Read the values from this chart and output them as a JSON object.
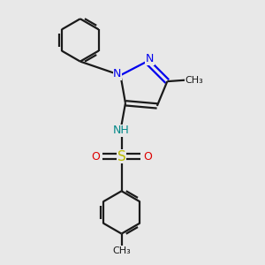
{
  "bg_color": "#e8e8e8",
  "bond_color": "#1a1a1a",
  "N_color": "#0000ee",
  "O_color": "#dd0000",
  "S_color": "#bbbb00",
  "NH_color": "#008888",
  "line_width": 1.6,
  "figsize": [
    3.0,
    3.0
  ],
  "dpi": 100,
  "xlim": [
    0,
    10
  ],
  "ylim": [
    0,
    10
  ]
}
